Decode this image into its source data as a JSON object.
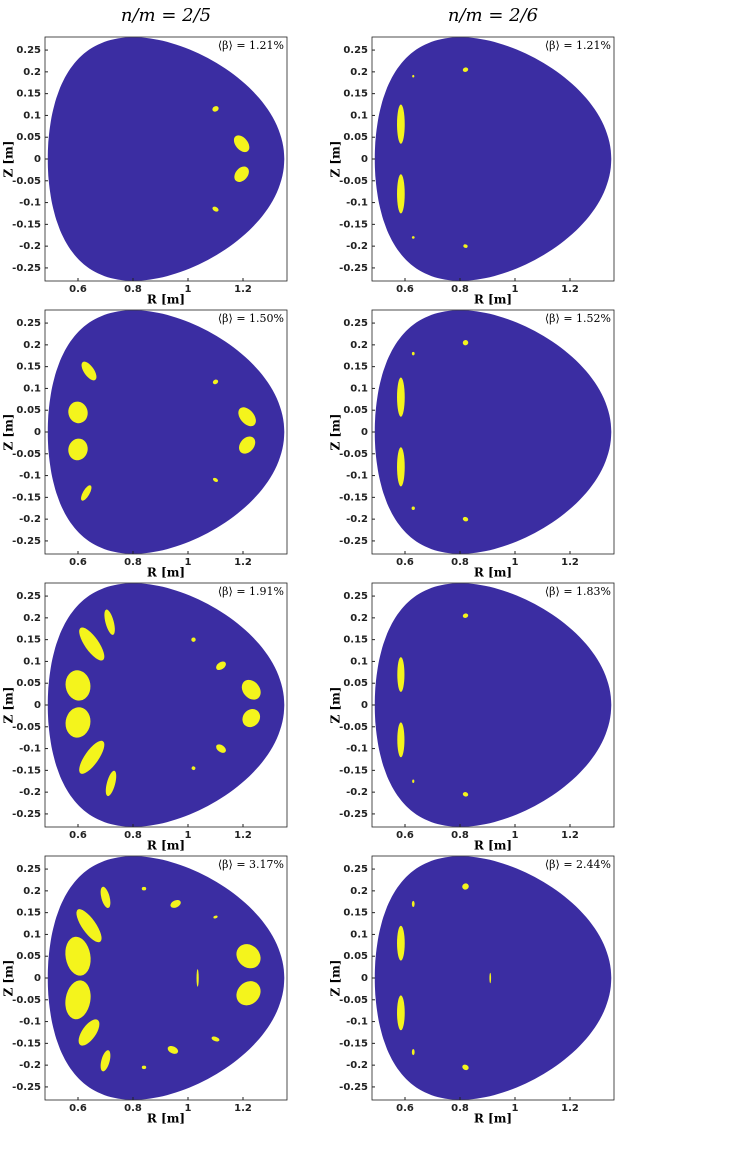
{
  "columns": [
    "n/m = 2/5",
    "n/m = 2/6"
  ],
  "chart_data": [
    {
      "type": "poloidal",
      "annotation": "⟨β⟩ = 1.21%",
      "xlabel": "R [m]",
      "ylabel": "Z [m]",
      "xlim": [
        0.48,
        1.36
      ],
      "ylim": [
        -0.28,
        0.28
      ],
      "xticks": [
        0.6,
        0.8,
        1,
        1.2
      ],
      "yticks": [
        0.25,
        0.2,
        0.15,
        0.1,
        0.05,
        0,
        -0.05,
        -0.1,
        -0.15,
        -0.2,
        -0.25
      ],
      "color": "#3b2da2",
      "island_color": "#f4f41c"
    },
    {
      "type": "poloidal",
      "annotation": "⟨β⟩ = 1.21%",
      "xlabel": "R [m]",
      "ylabel": "Z [m]",
      "xlim": [
        0.48,
        1.36
      ],
      "ylim": [
        -0.28,
        0.28
      ],
      "xticks": [
        0.6,
        0.8,
        1,
        1.2
      ],
      "yticks": [
        0.25,
        0.2,
        0.15,
        0.1,
        0.05,
        0,
        -0.05,
        -0.1,
        -0.15,
        -0.2,
        -0.25
      ],
      "color": "#3b2da2",
      "island_color": "#f4f41c"
    },
    {
      "type": "poloidal",
      "annotation": "⟨β⟩ = 1.50%",
      "xlabel": "R [m]",
      "ylabel": "Z [m]",
      "xlim": [
        0.48,
        1.36
      ],
      "ylim": [
        -0.28,
        0.28
      ],
      "xticks": [
        0.6,
        0.8,
        1,
        1.2
      ],
      "yticks": [
        0.25,
        0.2,
        0.15,
        0.1,
        0.05,
        0,
        -0.05,
        -0.1,
        -0.15,
        -0.2,
        -0.25
      ],
      "color": "#3b2da2",
      "island_color": "#f4f41c"
    },
    {
      "type": "poloidal",
      "annotation": "⟨β⟩ = 1.52%",
      "xlabel": "R [m]",
      "ylabel": "Z [m]",
      "xlim": [
        0.48,
        1.36
      ],
      "ylim": [
        -0.28,
        0.28
      ],
      "xticks": [
        0.6,
        0.8,
        1,
        1.2
      ],
      "yticks": [
        0.25,
        0.2,
        0.15,
        0.1,
        0.05,
        0,
        -0.05,
        -0.1,
        -0.15,
        -0.2,
        -0.25
      ],
      "color": "#3b2da2",
      "island_color": "#f4f41c"
    },
    {
      "type": "poloidal",
      "annotation": "⟨β⟩ = 1.91%",
      "xlabel": "R [m]",
      "ylabel": "Z [m]",
      "xlim": [
        0.48,
        1.36
      ],
      "ylim": [
        -0.28,
        0.28
      ],
      "xticks": [
        0.6,
        0.8,
        1,
        1.2
      ],
      "yticks": [
        0.25,
        0.2,
        0.15,
        0.1,
        0.05,
        0,
        -0.05,
        -0.1,
        -0.15,
        -0.2,
        -0.25
      ],
      "color": "#3b2da2",
      "island_color": "#f4f41c"
    },
    {
      "type": "poloidal",
      "annotation": "⟨β⟩ = 1.83%",
      "xlabel": "R [m]",
      "ylabel": "Z [m]",
      "xlim": [
        0.48,
        1.36
      ],
      "ylim": [
        -0.28,
        0.28
      ],
      "xticks": [
        0.6,
        0.8,
        1,
        1.2
      ],
      "yticks": [
        0.25,
        0.2,
        0.15,
        0.1,
        0.05,
        0,
        -0.05,
        -0.1,
        -0.15,
        -0.2,
        -0.25
      ],
      "color": "#3b2da2",
      "island_color": "#f4f41c"
    },
    {
      "type": "poloidal",
      "annotation": "⟨β⟩ = 3.17%",
      "xlabel": "R [m]",
      "ylabel": "Z [m]",
      "xlim": [
        0.48,
        1.36
      ],
      "ylim": [
        -0.28,
        0.28
      ],
      "xticks": [
        0.6,
        0.8,
        1,
        1.2
      ],
      "yticks": [
        0.25,
        0.2,
        0.15,
        0.1,
        0.05,
        0,
        -0.05,
        -0.1,
        -0.15,
        -0.2,
        -0.25
      ],
      "color": "#3b2da2",
      "island_color": "#f4f41c"
    },
    {
      "type": "poloidal",
      "annotation": "⟨β⟩ = 2.44%",
      "xlabel": "R [m]",
      "ylabel": "Z [m]",
      "xlim": [
        0.48,
        1.36
      ],
      "ylim": [
        -0.28,
        0.28
      ],
      "xticks": [
        0.6,
        0.8,
        1,
        1.2
      ],
      "yticks": [
        0.25,
        0.2,
        0.15,
        0.1,
        0.05,
        0,
        -0.05,
        -0.1,
        -0.15,
        -0.2,
        -0.25
      ],
      "color": "#3b2da2",
      "island_color": "#f4f41c"
    }
  ]
}
